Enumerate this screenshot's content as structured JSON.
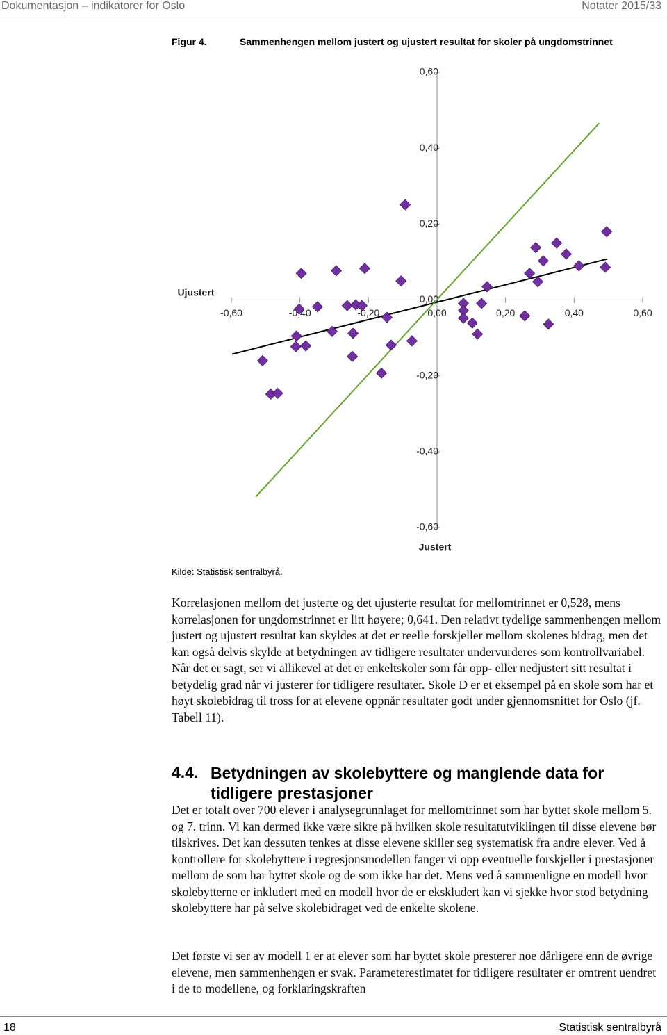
{
  "header": {
    "left": "Dokumentasjon – indikatorer for Oslo",
    "right": "Notater 2015/33"
  },
  "figure": {
    "number": "Figur 4.",
    "caption": "Sammenhengen mellom justert og ujustert resultat for skoler på ungdomstrinnet"
  },
  "chart_data": {
    "type": "scatter",
    "y_label": "Ujustert",
    "x_label": "Justert",
    "color": "#7030a0",
    "xlim": [
      -0.6,
      0.6
    ],
    "ylim": [
      -0.6,
      0.6
    ],
    "xticks": [
      {
        "value": -0.6,
        "label": "-0,60"
      },
      {
        "value": -0.4,
        "label": "-0,40"
      },
      {
        "value": -0.2,
        "label": "-0,20"
      },
      {
        "value": 0,
        "label": "0,00"
      },
      {
        "value": 0.2,
        "label": "0,20"
      },
      {
        "value": 0.4,
        "label": "0,40"
      },
      {
        "value": 0.6,
        "label": "0,60"
      }
    ],
    "yticks": [
      {
        "value": 0.6,
        "label": "0,60"
      },
      {
        "value": 0.4,
        "label": "0,40"
      },
      {
        "value": 0.2,
        "label": "0,20"
      },
      {
        "value": 0,
        "label": "0,00"
      },
      {
        "value": -0.2,
        "label": "-0,20"
      },
      {
        "value": -0.4,
        "label": "-0,40"
      },
      {
        "value": -0.6,
        "label": "-0,60"
      }
    ],
    "x": [
      -0.093,
      -0.396,
      -0.294,
      -0.211,
      -0.105,
      -0.402,
      -0.349,
      -0.262,
      -0.237,
      -0.219,
      -0.146,
      -0.41,
      -0.412,
      -0.383,
      -0.306,
      -0.245,
      -0.247,
      -0.134,
      -0.073,
      -0.162,
      -0.509,
      -0.485,
      -0.465,
      0.077,
      0.077,
      0.13,
      0.077,
      0.103,
      0.118,
      0.146,
      0.256,
      0.325,
      0.27,
      0.294,
      0.288,
      0.31,
      0.349,
      0.377,
      0.414,
      0.495,
      0.491
    ],
    "values": [
      0.251,
      0.07,
      0.077,
      0.083,
      0.05,
      -0.024,
      -0.018,
      -0.015,
      -0.013,
      -0.015,
      -0.046,
      -0.095,
      -0.123,
      -0.121,
      -0.083,
      -0.088,
      -0.149,
      -0.119,
      -0.108,
      -0.193,
      -0.16,
      -0.248,
      -0.246,
      -0.009,
      -0.028,
      -0.009,
      -0.048,
      -0.061,
      -0.09,
      0.035,
      -0.042,
      -0.064,
      0.07,
      0.048,
      0.138,
      0.103,
      0.15,
      0.121,
      0.09,
      0.18,
      0.086
    ],
    "lines": [
      {
        "color": "#000000",
        "x": [
          -0.598,
          0.497
        ],
        "y": [
          -0.143,
          0.108
        ]
      },
      {
        "color": "#6aa034",
        "x": [
          -0.529,
          0.473
        ],
        "y": [
          -0.519,
          0.466
        ]
      }
    ]
  },
  "source": "Kilde: Statistisk sentralbyrå.",
  "paragraphs": [
    "Korrelasjonen mellom det justerte og det ujusterte resultat for mellomtrinnet er 0,528, mens korrelasjonen for ungdomstrinnet er litt høyere; 0,641. Den relativt tydelige sammenhengen mellom justert og ujustert resultat kan skyldes at det er reelle forskjeller mellom skolenes bidrag, men det kan også delvis skylde at betydningen av tidligere resultater undervurderes som kontrollvariabel. Når det er sagt, ser vi allikevel at det er enkeltskoler som får opp- eller nedjustert sitt resultat i betydelig grad når vi justerer for tidligere resultater. Skole D er et eksempel på en skole som har et høyt skolebidrag til tross for at elevene oppnår resultater godt under gjennomsnittet for Oslo (jf. Tabell 11).",
    "Det er totalt over 700 elever i analysegrunnlaget for mellomtrinnet som har byttet skole mellom 5. og 7. trinn. Vi kan dermed ikke være sikre på hvilken skole resultatutviklingen til disse elevene bør tilskrives. Det kan dessuten tenkes at disse elevene skiller seg systematisk fra andre elever. Ved å kontrollere for skolebyttere i regresjonsmodellen fanger vi opp eventuelle forskjeller i prestasjoner mellom de som har byttet skole og de som ikke har det. Mens ved å sammenligne en modell hvor skolebytterne er inkludert med en modell hvor de er ekskludert kan vi sjekke hvor stod betydning skolebyttere har på selve skolebidraget ved de enkelte skolene.",
    "Det første vi ser av modell 1 er at elever som har byttet skole presterer noe dårligere enn de øvrige elevene, men sammenhengen er svak. Parameterestimatet for tidligere resultater er omtrent uendret i de to modellene, og forklaringskraften"
  ],
  "section": {
    "number": "4.4.",
    "title": "Betydningen av skolebyttere og manglende data for tidligere prestasjoner"
  },
  "footer": {
    "page": "18",
    "right": "Statistisk sentralbyrå"
  }
}
